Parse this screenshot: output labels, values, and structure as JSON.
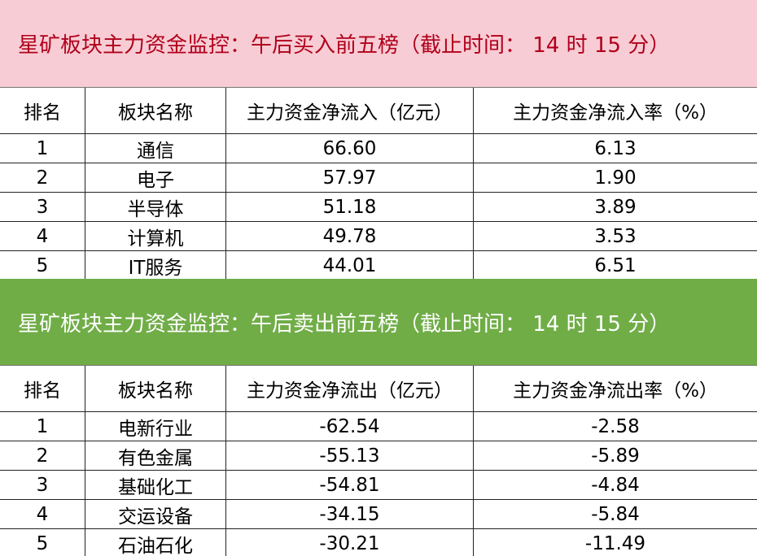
{
  "sections": [
    {
      "title": "星矿板块主力资金监控：午后买入前五榜（截止时间： 14 时 15 分）",
      "header": [
        "排名",
        "板块名称",
        "主力资金净流入（亿元）",
        "主力资金净流入率（%）"
      ],
      "rows": [
        [
          "1",
          "通信",
          "66.60",
          "6.13"
        ],
        [
          "2",
          "电子",
          "57.97",
          "1.90"
        ],
        [
          "3",
          "半导体",
          "51.18",
          "3.89"
        ],
        [
          "4",
          "计算机",
          "49.78",
          "3.53"
        ],
        [
          "5",
          "IT服务",
          "44.01",
          "6.51"
        ]
      ]
    },
    {
      "title": "星矿板块主力资金监控：午后卖出前五榜（截止时间： 14 时 15 分）",
      "header": [
        "排名",
        "板块名称",
        "主力资金净流出（亿元）",
        "主力资金净流出率（%）"
      ],
      "rows": [
        [
          "1",
          "电新行业",
          "-62.54",
          "-2.58"
        ],
        [
          "2",
          "有色金属",
          "-55.13",
          "-5.89"
        ],
        [
          "3",
          "基础化工",
          "-54.81",
          "-4.84"
        ],
        [
          "4",
          "交运设备",
          "-34.15",
          "-5.84"
        ],
        [
          "5",
          "石油石化",
          "-30.21",
          "-11.49"
        ]
      ]
    }
  ]
}
